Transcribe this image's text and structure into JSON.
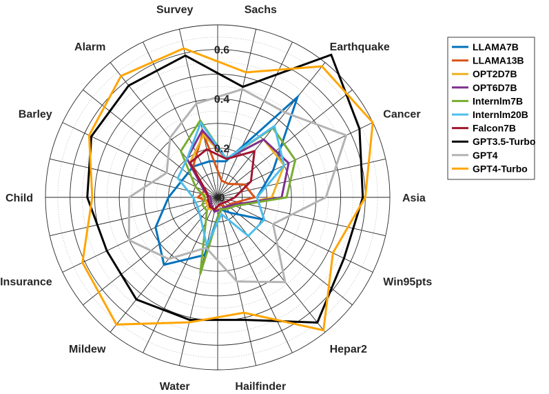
{
  "chart_data": {
    "type": "radar",
    "title": "",
    "categories": [
      "Sachs",
      "Earthquake",
      "Cancer",
      "Asia",
      "Win95pts",
      "Hepar2",
      "Hailfinder",
      "Water",
      "Mildew",
      "Insurance",
      "Child",
      "Barley",
      "Alarm",
      "Survey"
    ],
    "rlim": [
      0,
      0.7
    ],
    "ticks": [
      0,
      0.2,
      0.4,
      0.6
    ],
    "tick_labels": [
      "0",
      "0.2",
      "0.4",
      "0.6"
    ],
    "grid": true,
    "legend_position": "top-right",
    "series": [
      {
        "name": "LLAMA7B",
        "color": "#0072BD",
        "values": [
          0.15,
          0.52,
          0.25,
          0.16,
          0.21,
          0.08,
          0.05,
          0.24,
          0.35,
          0.28,
          0.2,
          0.16,
          0.16,
          0.15
        ]
      },
      {
        "name": "LLAMA13B",
        "color": "#D95319",
        "values": [
          0.07,
          0.07,
          0.12,
          0.15,
          0.06,
          0.05,
          0.03,
          0.05,
          0.05,
          0.04,
          0.08,
          0.06,
          0.16,
          0.27
        ]
      },
      {
        "name": "OPT2D7B",
        "color": "#EDB120",
        "values": [
          0.16,
          0.3,
          0.3,
          0.22,
          0.08,
          0.06,
          0.05,
          0.05,
          0.06,
          0.05,
          0.06,
          0.05,
          0.18,
          0.26
        ]
      },
      {
        "name": "OPT6D7B",
        "color": "#7E2F8E",
        "values": [
          0.16,
          0.3,
          0.32,
          0.26,
          0.07,
          0.05,
          0.05,
          0.06,
          0.04,
          0.03,
          0.03,
          0.06,
          0.2,
          0.28
        ]
      },
      {
        "name": "Internlm7B",
        "color": "#77AC30",
        "values": [
          0.16,
          0.36,
          0.35,
          0.28,
          0.08,
          0.06,
          0.05,
          0.32,
          0.07,
          0.07,
          0.05,
          0.1,
          0.24,
          0.32
        ]
      },
      {
        "name": "Internlm20B",
        "color": "#4DBEEE",
        "values": [
          0.16,
          0.37,
          0.3,
          0.16,
          0.21,
          0.2,
          0.07,
          0.2,
          0.11,
          0.09,
          0.1,
          0.18,
          0.2,
          0.31
        ]
      },
      {
        "name": "Falcon7B",
        "color": "#A2142F",
        "values": [
          0.16,
          0.24,
          0.15,
          0.07,
          0.04,
          0.03,
          0.03,
          0.05,
          0.05,
          0.04,
          0.04,
          0.05,
          0.18,
          0.2
        ]
      },
      {
        "name": "GPT3.5-Turbo",
        "color": "#000000",
        "values": [
          0.46,
          0.74,
          0.64,
          0.59,
          0.57,
          0.65,
          0.51,
          0.51,
          0.53,
          0.5,
          0.53,
          0.57,
          0.58,
          0.59
        ]
      },
      {
        "name": "GPT4",
        "color": "#B3B3B3",
        "values": [
          0.45,
          0.44,
          0.58,
          0.44,
          0.25,
          0.44,
          0.35,
          0.21,
          0.32,
          0.4,
          0.36,
          0.23,
          0.31,
          0.39
        ]
      },
      {
        "name": "GPT4-Turbo",
        "color": "#FFA500",
        "values": [
          0.52,
          0.68,
          0.7,
          0.6,
          0.52,
          0.69,
          0.48,
          0.52,
          0.66,
          0.61,
          0.51,
          0.58,
          0.63,
          0.62
        ]
      }
    ]
  }
}
